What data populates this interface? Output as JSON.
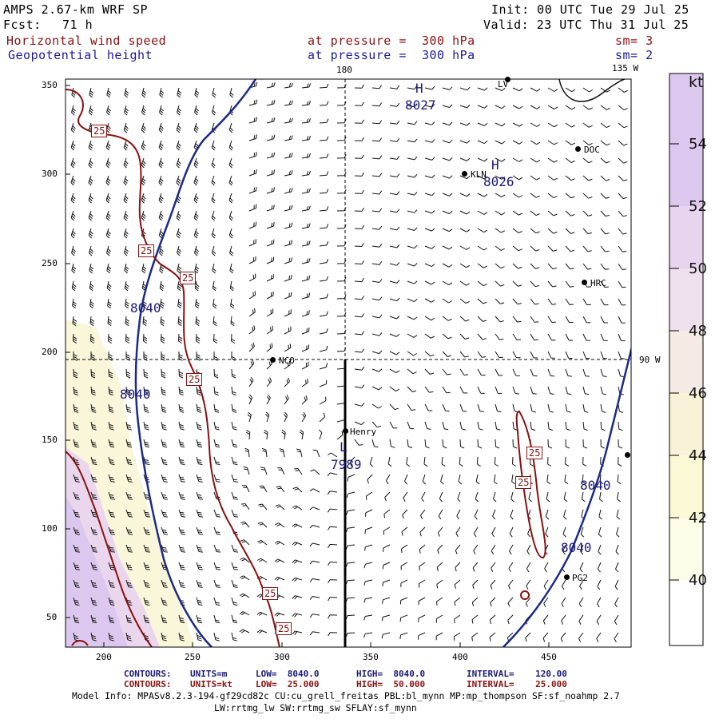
{
  "header": {
    "model": "AMPS 2.67-km WRF SP",
    "fcst_label": "Fcst:",
    "fcst_value": "71 h",
    "init": "Init: 00 UTC Tue 29 Jul 25",
    "valid": "Valid: 23 UTC Thu 31 Jul 25",
    "field1_name": "Horizontal wind speed",
    "field1_level": "at pressure =  300 hPa",
    "field1_sm": "sm= 3",
    "field2_name": "Geopotential height",
    "field2_level": "at pressure =  300 hPa",
    "field2_sm": "sm= 2"
  },
  "map": {
    "lon_top_label": "180",
    "lon_top_right_label": "135 W",
    "lon_right_label": "90 W",
    "x_ticks": [
      "200",
      "250",
      "300",
      "350",
      "400",
      "450"
    ],
    "y_ticks": [
      "350",
      "300",
      "250",
      "200",
      "150",
      "100",
      "50"
    ],
    "stations": [
      {
        "name": "LV",
        "kind": "station"
      },
      {
        "name": "DOC",
        "kind": "station"
      },
      {
        "name": "KLN",
        "kind": "station"
      },
      {
        "name": "HRC",
        "kind": "station"
      },
      {
        "name": "NCO",
        "kind": "station"
      },
      {
        "name": "Henry",
        "kind": "station"
      },
      {
        "name": "PG2",
        "kind": "station"
      },
      {
        "name": "",
        "kind": "station"
      }
    ],
    "height_labels": [
      "8027",
      "8026",
      "8040",
      "8040",
      "7989",
      "8040",
      "8040"
    ],
    "pressure_center_labels": [
      "H",
      "H",
      "L"
    ],
    "wind_labels": [
      "25",
      "25",
      "25",
      "25",
      "25",
      "25",
      "25",
      "25"
    ]
  },
  "colorbar": {
    "unit": "kt",
    "labels": [
      "54",
      "52",
      "50",
      "48",
      "46",
      "44",
      "42",
      "40"
    ],
    "colors": [
      "#dcc8ee",
      "#e6d2ee",
      "#ecdaf0",
      "#f2e6ec",
      "#f6eede",
      "#f8f4d0",
      "#faf8d8",
      "#ffffff"
    ]
  },
  "footer": {
    "line1_label": "CONTOURS:",
    "line1_units": "UNITS=m",
    "line1_low": "LOW=  8040.0",
    "line1_high": "HIGH=  8040.0",
    "line1_interval": "INTERVAL=    120.00",
    "line2_label": "CONTOURS:",
    "line2_units": "UNITS=kt",
    "line2_low": "LOW=  25.000",
    "line2_high": "HIGH=  50.000",
    "line2_interval": "INTERVAL=    25.000",
    "model_info": "Model Info: MPASv8.2.3-194-gf29cd82c CU:cu_grell_freitas PBL:bl_mynn MP:mp_thompson SF:sf_noahmp 2.7",
    "model_info2": "LW:rrtmg_lw SW:rrtmg_sw SFLAY:sf_mynn"
  }
}
